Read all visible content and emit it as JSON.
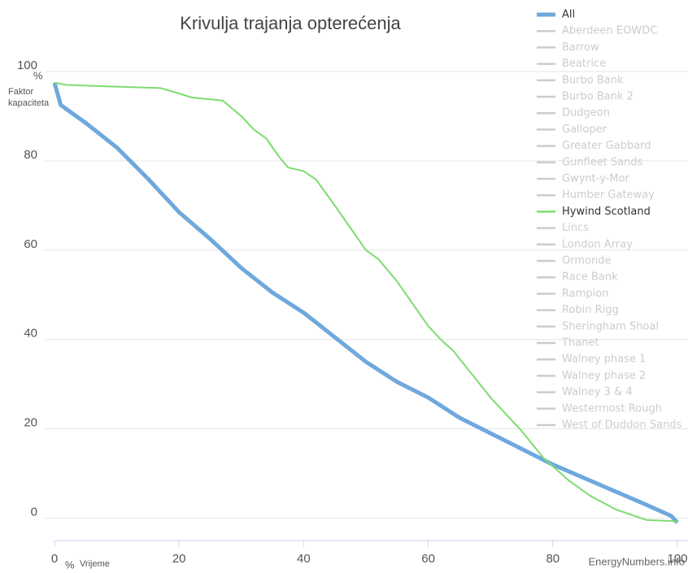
{
  "chart_data": {
    "type": "line",
    "title": "Krivulja trajanja opterećenja",
    "ylabel": [
      "Faktor",
      "kapaciteta"
    ],
    "yunit": "%",
    "xlabel": "Vrijeme",
    "xunit": "%",
    "credit": "EnergyNumbers.info",
    "xlim": [
      0,
      100
    ],
    "xticks": [
      0,
      20,
      40,
      60,
      80,
      100
    ],
    "ylim": [
      -5,
      100
    ],
    "yticks": [
      0,
      20,
      40,
      60,
      80,
      100
    ],
    "grid": true,
    "legend": "right",
    "series": [
      {
        "name": "All",
        "color": "#6fa8dc",
        "x": [
          0,
          1,
          5,
          10,
          15,
          20,
          25,
          30,
          35,
          40,
          45,
          50,
          55,
          60,
          65,
          70,
          75,
          80,
          85,
          90,
          95,
          99,
          100
        ],
        "values": [
          97.5,
          92.5,
          88.5,
          83,
          76,
          68.5,
          62.5,
          56,
          50.5,
          46,
          40.5,
          35,
          30.5,
          27,
          22.5,
          19,
          15.5,
          12,
          9,
          6,
          3,
          0.5,
          -1
        ]
      },
      {
        "name": "Hywind Scotland",
        "color": "#7ddc6f",
        "x": [
          0,
          2,
          10,
          17,
          19,
          22,
          27,
          30,
          32,
          34,
          36,
          37.5,
          40,
          42,
          45,
          50,
          52,
          55,
          60,
          62,
          64,
          70,
          75,
          78.5,
          82.5,
          86,
          90,
          95,
          100
        ],
        "values": [
          97.5,
          97,
          96.6,
          96.3,
          95.5,
          94.2,
          93.5,
          90,
          87,
          85,
          81,
          78.5,
          77.7,
          75.8,
          70,
          60,
          58,
          53,
          43,
          40,
          37.5,
          27,
          19.5,
          13.5,
          8.5,
          5,
          2,
          -0.4,
          -0.7
        ]
      }
    ],
    "legend_order": [
      "All",
      "Aberdeen EOWDC",
      "Barrow",
      "Beatrice",
      "Burbo Bank",
      "Burbo Bank 2",
      "Dudgeon",
      "Galloper",
      "Greater Gabbard",
      "Gunfleet Sands",
      "Gwynt-y-Mor",
      "Humber Gateway",
      "Hywind Scotland",
      "Lincs",
      "London Array",
      "Ormonde",
      "Race Bank",
      "Rampion",
      "Robin Rigg",
      "Sheringham Shoal",
      "Thanet",
      "Walney phase 1",
      "Walney phase 2",
      "Walney 3 & 4",
      "Westermost Rough",
      "West of Duddon Sands"
    ],
    "hidden_color": "#cccccc"
  }
}
